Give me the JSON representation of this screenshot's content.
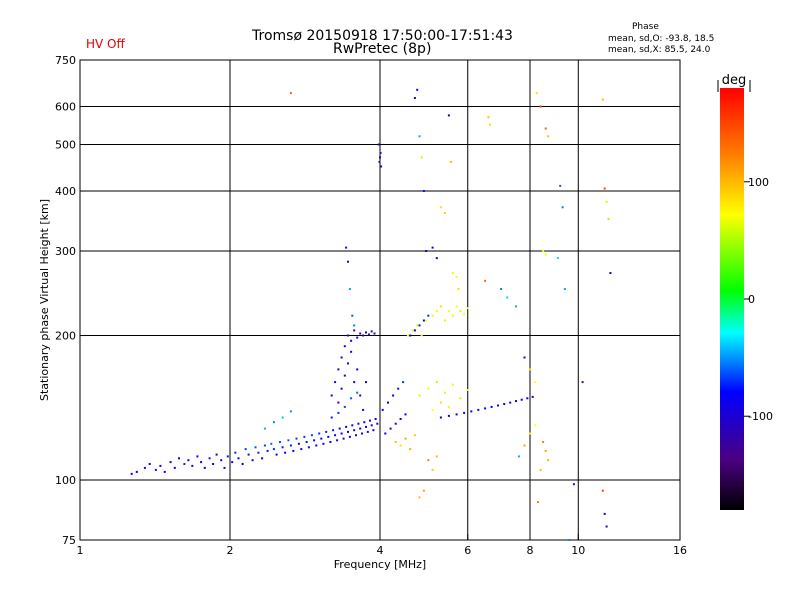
{
  "header": {
    "title_line1": "Tromsø 20150918 17:50:00-17:51:43",
    "title_line2": "RwPretec (8p)",
    "hv_status": "HV Off",
    "phase_label": "Phase",
    "phase_o": "mean, sd,O: -93.8, 18.5",
    "phase_x": "mean, sd,X:  85.5, 24.0"
  },
  "colors": {
    "hv_status": "#e00000",
    "axis": "#000000"
  },
  "chart_data": {
    "type": "scatter",
    "title": "Tromsø 20150918 17:50:00-17:51:43",
    "subtitle": "RwPretec (8p)",
    "xlabel": "Frequency [MHz]",
    "ylabel": "Stationary phase Virtual Height [km]",
    "x_scale": "log",
    "y_scale": "log",
    "xlim": [
      1,
      16
    ],
    "ylim": [
      75,
      750
    ],
    "grid": true,
    "x_ticks": [
      1,
      2,
      4,
      6,
      8,
      10,
      16
    ],
    "x_tick_labels": [
      "1",
      "2",
      "4",
      "6",
      "8",
      "10",
      "16"
    ],
    "x_gridlines": [
      2,
      4,
      6,
      8,
      10
    ],
    "y_ticks": [
      75,
      100,
      200,
      300,
      400,
      500,
      600,
      750
    ],
    "y_tick_labels": [
      "75",
      "100",
      "200",
      "300",
      "400",
      "500",
      "600",
      "750"
    ],
    "y_gridlines": [
      100,
      200,
      300,
      400,
      500,
      600
    ],
    "colorbar": {
      "label": "deg",
      "range": [
        -180,
        180
      ],
      "ticks": [
        100,
        0,
        -100
      ],
      "tick_labels": [
        "100",
        "0",
        "-100"
      ]
    },
    "points": [
      [
        1.27,
        103,
        -105
      ],
      [
        1.3,
        104,
        -110
      ],
      [
        1.35,
        106,
        -115
      ],
      [
        1.38,
        108,
        -100
      ],
      [
        1.42,
        105,
        -95
      ],
      [
        1.45,
        107,
        -110
      ],
      [
        1.48,
        104,
        -108
      ],
      [
        1.52,
        109,
        -100
      ],
      [
        1.55,
        106,
        -120
      ],
      [
        1.58,
        111,
        -105
      ],
      [
        1.62,
        108,
        -90
      ],
      [
        1.65,
        110,
        -112
      ],
      [
        1.68,
        107,
        -98
      ],
      [
        1.72,
        112,
        -105
      ],
      [
        1.75,
        109,
        -110
      ],
      [
        1.78,
        106,
        -115
      ],
      [
        1.82,
        111,
        -95
      ],
      [
        1.85,
        108,
        -102
      ],
      [
        1.88,
        113,
        -108
      ],
      [
        1.92,
        110,
        -100
      ],
      [
        1.95,
        106,
        -118
      ],
      [
        1.98,
        112,
        -96
      ],
      [
        2.02,
        109,
        -104
      ],
      [
        2.05,
        114,
        -90
      ],
      [
        2.08,
        111,
        -107
      ],
      [
        2.12,
        108,
        -100
      ],
      [
        2.15,
        116,
        -85
      ],
      [
        2.18,
        113,
        -95
      ],
      [
        2.22,
        110,
        -102
      ],
      [
        2.25,
        117,
        -80
      ],
      [
        2.28,
        114,
        -92
      ],
      [
        2.32,
        111,
        -100
      ],
      [
        2.35,
        118,
        -85
      ],
      [
        2.38,
        115,
        -95
      ],
      [
        2.42,
        119,
        -75
      ],
      [
        2.45,
        116,
        -90
      ],
      [
        2.48,
        113,
        -100
      ],
      [
        2.52,
        120,
        -82
      ],
      [
        2.55,
        117,
        -95
      ],
      [
        2.58,
        114,
        -104
      ],
      [
        2.62,
        121,
        -78
      ],
      [
        2.65,
        118,
        -92
      ],
      [
        2.68,
        115,
        -100
      ],
      [
        2.72,
        122,
        -88
      ],
      [
        2.75,
        119,
        -97
      ],
      [
        2.78,
        116,
        -103
      ],
      [
        2.82,
        123,
        -86
      ],
      [
        2.85,
        120,
        -95
      ],
      [
        2.88,
        117,
        -100
      ],
      [
        2.92,
        124,
        -84
      ],
      [
        2.95,
        121,
        -98
      ],
      [
        2.98,
        118,
        -105
      ],
      [
        3.02,
        125,
        -90
      ],
      [
        3.05,
        122,
        -100
      ],
      [
        3.08,
        119,
        -108
      ],
      [
        3.12,
        126,
        -92
      ],
      [
        3.15,
        123,
        -102
      ],
      [
        3.18,
        120,
        -110
      ],
      [
        3.22,
        127,
        -95
      ],
      [
        3.25,
        124,
        -105
      ],
      [
        3.28,
        121,
        -112
      ],
      [
        3.32,
        128,
        -98
      ],
      [
        3.35,
        125,
        -108
      ],
      [
        3.38,
        122,
        -115
      ],
      [
        3.42,
        129,
        -100
      ],
      [
        3.45,
        126,
        -110
      ],
      [
        3.48,
        123,
        -118
      ],
      [
        3.52,
        130,
        -104
      ],
      [
        3.55,
        127,
        -112
      ],
      [
        3.58,
        124,
        -120
      ],
      [
        3.62,
        131,
        -106
      ],
      [
        3.65,
        128,
        -114
      ],
      [
        3.68,
        125,
        -122
      ],
      [
        3.72,
        132,
        -108
      ],
      [
        3.75,
        129,
        -116
      ],
      [
        3.78,
        126,
        -124
      ],
      [
        3.82,
        133,
        -110
      ],
      [
        3.85,
        130,
        -118
      ],
      [
        3.88,
        127,
        -126
      ],
      [
        3.92,
        134,
        -112
      ],
      [
        3.95,
        131,
        -120
      ],
      [
        2.35,
        128,
        -60
      ],
      [
        2.45,
        132,
        -70
      ],
      [
        2.55,
        135,
        -55
      ],
      [
        2.65,
        139,
        -65
      ],
      [
        3.2,
        150,
        -120
      ],
      [
        3.25,
        160,
        -125
      ],
      [
        3.3,
        170,
        -118
      ],
      [
        3.35,
        180,
        -128
      ],
      [
        3.4,
        190,
        -122
      ],
      [
        3.45,
        200,
        -130
      ],
      [
        3.5,
        195,
        -115
      ],
      [
        3.55,
        205,
        -125
      ],
      [
        3.6,
        198,
        -120
      ],
      [
        3.65,
        202,
        -128
      ],
      [
        3.7,
        200,
        -118
      ],
      [
        3.75,
        203,
        -124
      ],
      [
        3.8,
        201,
        -120
      ],
      [
        3.85,
        204,
        -126
      ],
      [
        3.9,
        202,
        -119
      ],
      [
        3.3,
        145,
        -135
      ],
      [
        3.35,
        155,
        -140
      ],
      [
        3.4,
        165,
        -132
      ],
      [
        3.45,
        175,
        -138
      ],
      [
        3.5,
        185,
        -130
      ],
      [
        3.55,
        160,
        -110
      ],
      [
        3.6,
        170,
        -105
      ],
      [
        3.65,
        150,
        -115
      ],
      [
        3.7,
        140,
        -112
      ],
      [
        3.75,
        160,
        -100
      ],
      [
        3.2,
        135,
        -95
      ],
      [
        3.3,
        138,
        -90
      ],
      [
        3.4,
        142,
        -85
      ],
      [
        3.5,
        148,
        -80
      ],
      [
        3.6,
        152,
        -75
      ],
      [
        3.42,
        305,
        -95
      ],
      [
        3.45,
        285,
        -120
      ],
      [
        3.48,
        250,
        -60
      ],
      [
        3.52,
        220,
        -80
      ],
      [
        3.55,
        210,
        -70
      ],
      [
        3.98,
        500,
        -140
      ],
      [
        3.99,
        460,
        -130
      ],
      [
        4.0,
        470,
        -120
      ],
      [
        4.02,
        450,
        -125
      ],
      [
        4.01,
        480,
        -110
      ],
      [
        4.05,
        140,
        -110
      ],
      [
        4.15,
        145,
        -100
      ],
      [
        4.25,
        150,
        -105
      ],
      [
        4.35,
        155,
        -95
      ],
      [
        4.45,
        160,
        -90
      ],
      [
        4.1,
        125,
        -120
      ],
      [
        4.2,
        128,
        -110
      ],
      [
        4.3,
        131,
        -115
      ],
      [
        4.4,
        134,
        -105
      ],
      [
        4.5,
        137,
        -100
      ],
      [
        4.6,
        200,
        -110
      ],
      [
        4.7,
        205,
        -100
      ],
      [
        4.8,
        210,
        -95
      ],
      [
        4.9,
        215,
        -105
      ],
      [
        5.0,
        220,
        -90
      ],
      [
        4.55,
        200,
        95
      ],
      [
        4.65,
        205,
        90
      ],
      [
        4.75,
        210,
        85
      ],
      [
        4.85,
        200,
        100
      ],
      [
        4.95,
        215,
        92
      ],
      [
        5.1,
        220,
        105
      ],
      [
        5.2,
        225,
        95
      ],
      [
        5.3,
        230,
        110
      ],
      [
        5.4,
        215,
        88
      ],
      [
        5.5,
        225,
        100
      ],
      [
        5.6,
        220,
        90
      ],
      [
        5.7,
        230,
        95
      ],
      [
        5.8,
        225,
        85
      ],
      [
        5.9,
        222,
        100
      ],
      [
        6.0,
        228,
        92
      ],
      [
        4.8,
        150,
        80
      ],
      [
        5.0,
        155,
        95
      ],
      [
        5.2,
        160,
        70
      ],
      [
        5.4,
        152,
        85
      ],
      [
        5.6,
        158,
        90
      ],
      [
        5.8,
        148,
        75
      ],
      [
        6.0,
        154,
        88
      ],
      [
        5.1,
        140,
        100
      ],
      [
        5.3,
        145,
        110
      ],
      [
        5.5,
        142,
        95
      ],
      [
        4.3,
        120,
        120
      ],
      [
        4.4,
        118,
        110
      ],
      [
        4.5,
        122,
        130
      ],
      [
        4.6,
        116,
        125
      ],
      [
        4.7,
        124,
        115
      ],
      [
        4.8,
        92,
        120
      ],
      [
        4.9,
        95,
        130
      ],
      [
        5.0,
        110,
        140
      ],
      [
        5.1,
        105,
        115
      ],
      [
        5.2,
        112,
        125
      ],
      [
        5.3,
        135,
        -110
      ],
      [
        5.5,
        136,
        -105
      ],
      [
        5.7,
        137,
        -100
      ],
      [
        5.9,
        138,
        -108
      ],
      [
        6.1,
        139,
        -102
      ],
      [
        6.3,
        140,
        -110
      ],
      [
        6.5,
        141,
        -105
      ],
      [
        6.7,
        142,
        -100
      ],
      [
        6.9,
        143,
        -108
      ],
      [
        7.1,
        144,
        -102
      ],
      [
        7.3,
        145,
        -110
      ],
      [
        7.5,
        146,
        -105
      ],
      [
        7.7,
        147,
        -100
      ],
      [
        7.9,
        148,
        -108
      ],
      [
        8.1,
        149,
        -102
      ],
      [
        4.7,
        625,
        -120
      ],
      [
        4.75,
        650,
        -110
      ],
      [
        4.8,
        520,
        -60
      ],
      [
        4.85,
        470,
        110
      ],
      [
        4.9,
        400,
        -95
      ],
      [
        4.95,
        300,
        -105
      ],
      [
        5.1,
        305,
        -110
      ],
      [
        5.2,
        290,
        -100
      ],
      [
        5.3,
        370,
        110
      ],
      [
        5.4,
        360,
        115
      ],
      [
        5.5,
        575,
        -160
      ],
      [
        5.55,
        460,
        120
      ],
      [
        5.6,
        270,
        90
      ],
      [
        5.7,
        265,
        100
      ],
      [
        5.75,
        250,
        110
      ],
      [
        2.65,
        640,
        150
      ],
      [
        6.6,
        570,
        120
      ],
      [
        6.65,
        550,
        110
      ],
      [
        6.5,
        260,
        150
      ],
      [
        7.0,
        250,
        -70
      ],
      [
        7.2,
        240,
        -50
      ],
      [
        7.5,
        230,
        -60
      ],
      [
        7.8,
        180,
        -120
      ],
      [
        8.0,
        170,
        110
      ],
      [
        8.2,
        160,
        100
      ],
      [
        8.25,
        640,
        110
      ],
      [
        8.4,
        600,
        160
      ],
      [
        8.6,
        540,
        150
      ],
      [
        8.7,
        520,
        120
      ],
      [
        8.5,
        300,
        95
      ],
      [
        8.6,
        295,
        90
      ],
      [
        9.1,
        290,
        -50
      ],
      [
        9.2,
        410,
        -80
      ],
      [
        9.3,
        370,
        -70
      ],
      [
        9.4,
        250,
        -60
      ],
      [
        8.5,
        120,
        140
      ],
      [
        8.6,
        115,
        130
      ],
      [
        8.7,
        110,
        125
      ],
      [
        8.4,
        105,
        120
      ],
      [
        8.3,
        90,
        135
      ],
      [
        8.2,
        130,
        100
      ],
      [
        8.0,
        125,
        95
      ],
      [
        7.8,
        118,
        130
      ],
      [
        7.6,
        112,
        -60
      ],
      [
        9.6,
        75,
        -70
      ],
      [
        10.2,
        160,
        -150
      ],
      [
        11.2,
        620,
        120
      ],
      [
        11.3,
        405,
        160
      ],
      [
        11.4,
        380,
        80
      ],
      [
        11.5,
        350,
        60
      ],
      [
        11.6,
        270,
        -110
      ],
      [
        11.2,
        95,
        160
      ],
      [
        11.3,
        85,
        -120
      ],
      [
        11.4,
        80,
        -110
      ],
      [
        9.8,
        98,
        -95
      ]
    ]
  }
}
